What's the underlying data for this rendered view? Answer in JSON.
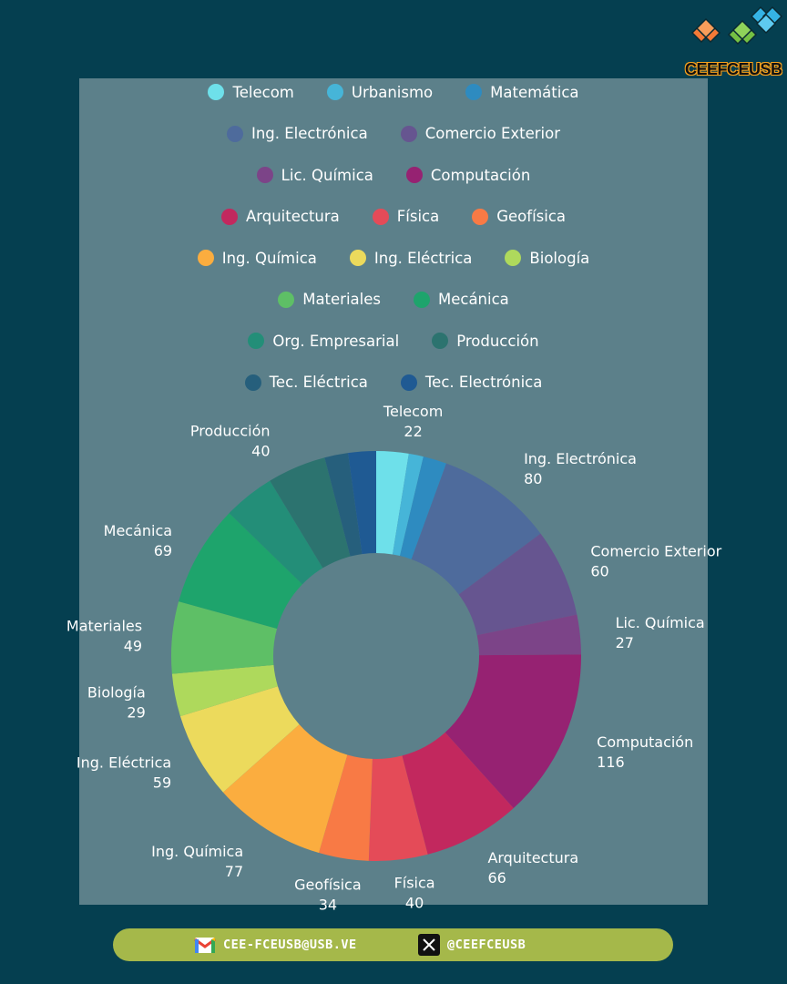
{
  "logo": {
    "text": "CEEFCEUSB"
  },
  "colors": {
    "background": "#053f50",
    "panel": "#5c808a",
    "footer": "#a5b84a"
  },
  "footer": {
    "email": "CEE-FCEUSB@USB.VE",
    "email_icon": "gmail-icon",
    "social": "@CEEFCEUSB",
    "social_icon": "x-icon"
  },
  "chart_data": {
    "type": "pie",
    "subtype": "donut",
    "title": "",
    "legend_placement": "top",
    "legend_rows": [
      [
        "Telecom",
        "Urbanismo",
        "Matemática"
      ],
      [
        "Ing. Electrónica",
        "Comercio Exterior"
      ],
      [
        "Lic. Química",
        "Computación"
      ],
      [
        "Arquitectura",
        "Física",
        "Geofísica"
      ],
      [
        "Ing. Química",
        "Ing. Eléctrica",
        "Biología"
      ],
      [
        "Materiales",
        "Mecánica"
      ],
      [
        "Org. Empresarial",
        "Producción"
      ],
      [
        "Tec. Eléctrica",
        "Tec. Electrónica"
      ]
    ],
    "slices": [
      {
        "label": "Telecom",
        "value": 22,
        "color": "#6ee0ea",
        "show_label": true
      },
      {
        "label": "Urbanismo",
        "value": 10,
        "color": "#46b5d8",
        "show_label": false
      },
      {
        "label": "Matemática",
        "value": 16,
        "color": "#2e8bc0",
        "show_label": false
      },
      {
        "label": "Ing. Electrónica",
        "value": 80,
        "color": "#4e6b9c",
        "show_label": true
      },
      {
        "label": "Comercio Exterior",
        "value": 60,
        "color": "#665590",
        "show_label": true
      },
      {
        "label": "Lic. Química",
        "value": 27,
        "color": "#7c4488",
        "show_label": true
      },
      {
        "label": "Computación",
        "value": 116,
        "color": "#962272",
        "show_label": true
      },
      {
        "label": "Arquitectura",
        "value": 66,
        "color": "#c2285e",
        "show_label": true
      },
      {
        "label": "Física",
        "value": 40,
        "color": "#e44b58",
        "show_label": true
      },
      {
        "label": "Geofísica",
        "value": 34,
        "color": "#f87a45",
        "show_label": true
      },
      {
        "label": "Ing. Química",
        "value": 77,
        "color": "#fbad3f",
        "show_label": true
      },
      {
        "label": "Ing. Eléctrica",
        "value": 59,
        "color": "#ecda5c",
        "show_label": true
      },
      {
        "label": "Biología",
        "value": 29,
        "color": "#aed95c",
        "show_label": true
      },
      {
        "label": "Materiales",
        "value": 49,
        "color": "#5ebf66",
        "show_label": true
      },
      {
        "label": "Mecánica",
        "value": 69,
        "color": "#1ea46c",
        "show_label": true
      },
      {
        "label": "Org. Empresarial",
        "value": 35,
        "color": "#238e78",
        "show_label": false
      },
      {
        "label": "Producción",
        "value": 40,
        "color": "#2c736f",
        "show_label": true
      },
      {
        "label": "Tec. Eléctrica",
        "value": 16,
        "color": "#265f7c",
        "show_label": false
      },
      {
        "label": "Tec. Electrónica",
        "value": 19,
        "color": "#1f5a93",
        "show_label": false
      }
    ]
  }
}
